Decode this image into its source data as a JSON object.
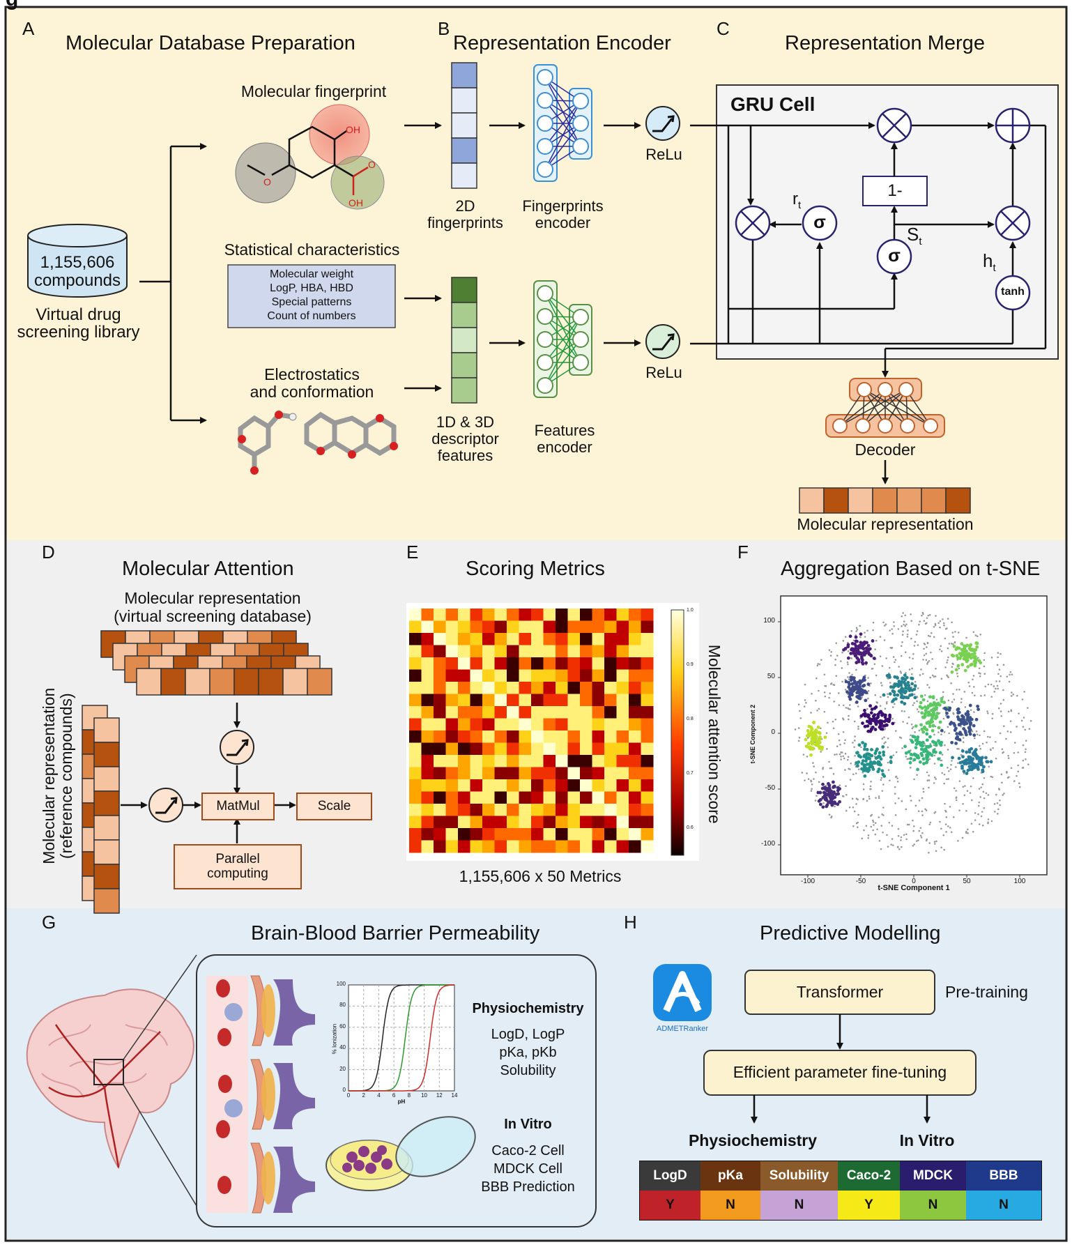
{
  "figure_label": "g",
  "panels": {
    "A": {
      "letter": "A",
      "title": "Molecular Database Preparation",
      "library_count": "1,155,606",
      "library_unit": "compounds",
      "library_caption_1": "Virtual drug",
      "library_caption_2": "screening library",
      "fingerprint_title": "Molecular fingerprint",
      "atom_oh": "OH",
      "atom_o": "O",
      "atom_o2": "O",
      "atom_oh2": "OH",
      "stats_title": "Statistical characteristics",
      "stats_items": [
        "Molecular weight",
        "LogP, HBA, HBD",
        "Special patterns",
        "Count of numbers"
      ],
      "electro_1": "Electrostatics",
      "electro_2": "and conformation"
    },
    "B": {
      "letter": "B",
      "title": "Representation Encoder",
      "fp_caption_1": "2D",
      "fp_caption_2": "fingerprints",
      "fp_enc_1": "Fingerprints",
      "fp_enc_2": "encoder",
      "desc_caption_1": "1D & 3D",
      "desc_caption_2": "descriptor",
      "desc_caption_3": "features",
      "feat_enc_1": "Features",
      "feat_enc_2": "encoder",
      "relu_1": "ReLu",
      "relu_2": "ReLu"
    },
    "C": {
      "letter": "C",
      "title": "Representation Merge",
      "gru_title": "GRU Cell",
      "one_minus": "1-",
      "r_label": "r",
      "r_sub": "t",
      "s_label": "S",
      "s_sub": "t",
      "h_label": "h",
      "h_sub": "t",
      "sigma": "σ",
      "tanh": "tanh",
      "decoder": "Decoder",
      "mol_rep": "Molecular representation"
    },
    "D": {
      "letter": "D",
      "title": "Molecular Attention",
      "top_1": "Molecular representation",
      "top_2": "(virtual screening database)",
      "side_1": "Molecular representation",
      "side_2": "(reference compounds)",
      "matmul": "MatMul",
      "scale": "Scale",
      "parallel_1": "Parallel",
      "parallel_2": "computing"
    },
    "E": {
      "letter": "E",
      "title": "Scoring Metrics",
      "caption": "1,155,606 x 50 Metrics",
      "colorbar_label": "Molecular attention score",
      "colorbar_ticks": [
        "1.0",
        "0.9",
        "0.8",
        "0.7",
        "0.6"
      ]
    },
    "F": {
      "letter": "F",
      "title": "Aggregation Based on t-SNE",
      "xlabel": "t-SNE Component 1",
      "ylabel": "t-SNE Component 2",
      "xticks": [
        "-100",
        "-50",
        "0",
        "50",
        "100"
      ],
      "yticks": [
        "100",
        "50",
        "0",
        "-50",
        "-100"
      ]
    },
    "G": {
      "letter": "G",
      "title": "Brain-Blood Barrier Permeability",
      "physio_title": "Physiochemistry",
      "physio_1": "LogD, LogP",
      "physio_2": "pKa, pKb",
      "physio_3": "Solubility",
      "invitro_title": "In Vitro",
      "invitro_1": "Caco-2 Cell",
      "invitro_2": "MDCK Cell",
      "invitro_3": "BBB Prediction",
      "ion_ylabel": "% Ionization",
      "ion_xlabel": "pH",
      "ion_yticks": [
        "100",
        "80",
        "60",
        "40",
        "20",
        "0"
      ],
      "ion_xticks": [
        "0",
        "2",
        "4",
        "6",
        "8",
        "10",
        "12",
        "14"
      ]
    },
    "H": {
      "letter": "H",
      "title": "Predictive Modelling",
      "app_name": "ADMETRanker",
      "transformer": "Transformer",
      "pretraining": "Pre-training",
      "finetune": "Efficient parameter fine-tuning",
      "physio": "Physiochemistry",
      "invitro": "In Vitro",
      "table_headers": [
        "LogD",
        "pKa",
        "Solubility",
        "Caco-2",
        "MDCK",
        "BBB"
      ],
      "table_values": [
        "Y",
        "N",
        "N",
        "Y",
        "N",
        "N"
      ],
      "header_colors": [
        "#3a3a3a",
        "#6b3410",
        "#8a5a2b",
        "#1d6b32",
        "#2a1d6e",
        "#1f3a8a"
      ],
      "value_colors": [
        "#c0222a",
        "#f39b1e",
        "#c5a3d6",
        "#f5ea18",
        "#8dc63f",
        "#27a9e1"
      ]
    }
  }
}
